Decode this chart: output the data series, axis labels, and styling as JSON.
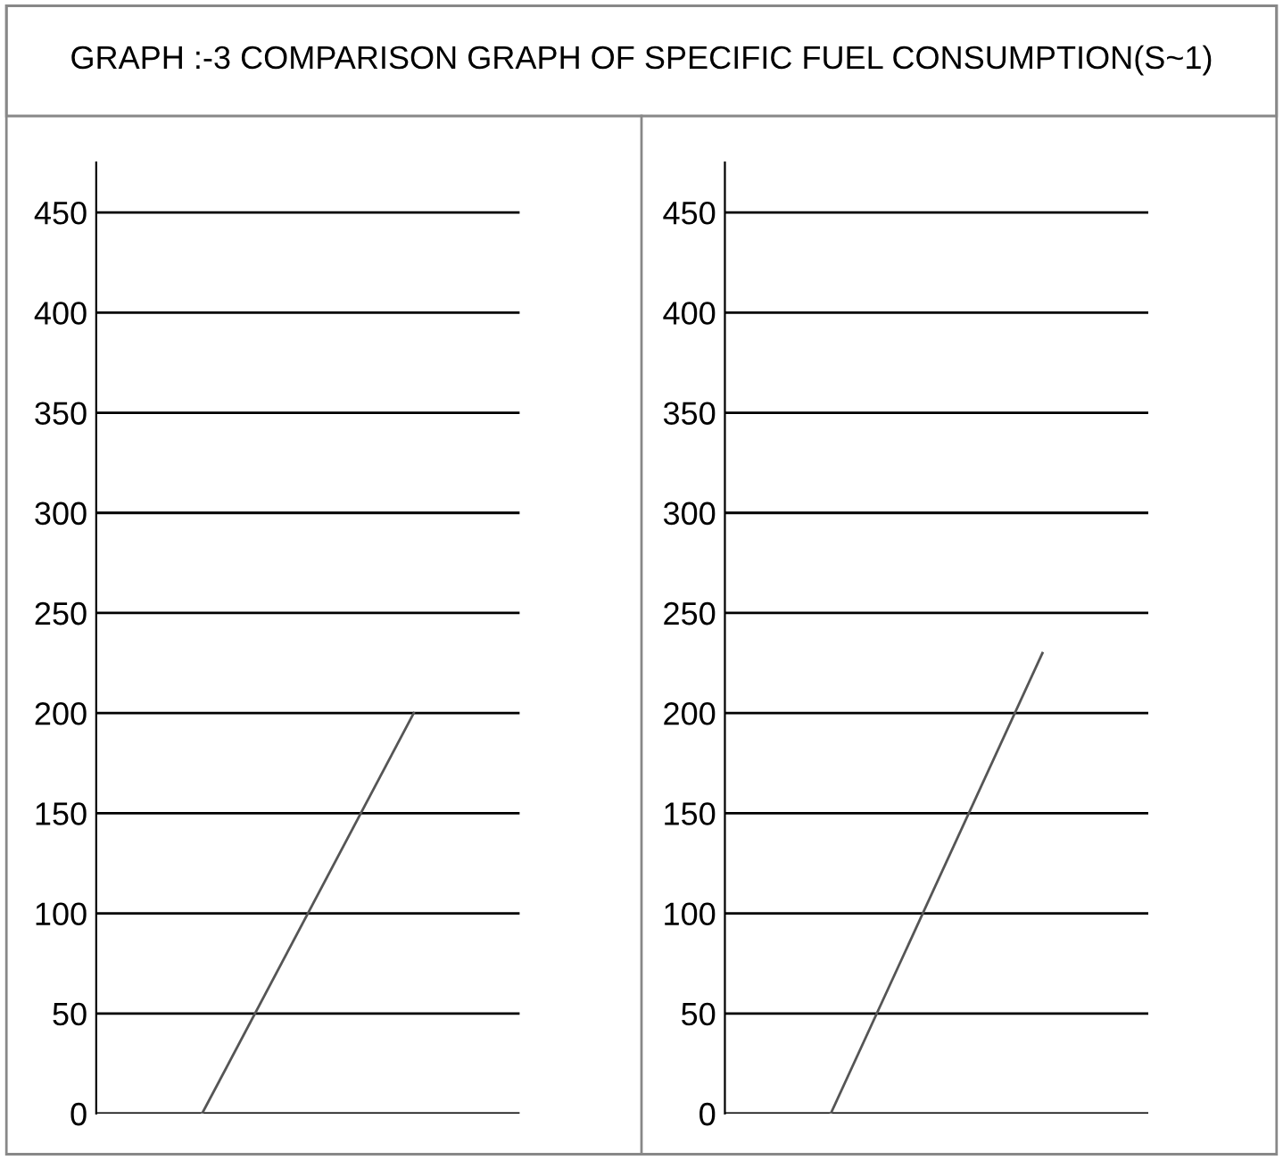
{
  "chart_data": [
    {
      "type": "line",
      "title": "GRAPH :-3 COMPARISON GRAPH OF SPECIFIC FUEL CONSUMPTION(S~1)",
      "categories": [
        null,
        null
      ],
      "series": [
        {
          "color": "#555555",
          "values": [
            0,
            200
          ]
        }
      ],
      "ylim": [
        0,
        475
      ],
      "yticks": [
        0,
        50,
        100,
        150,
        200,
        250,
        300,
        350,
        400,
        450
      ],
      "grid": "y",
      "tick_labels": "y"
    },
    {
      "type": "line",
      "categories": [
        null,
        null
      ],
      "series": [
        {
          "color": "#555555",
          "values": [
            0,
            230
          ]
        }
      ],
      "ylim": [
        0,
        475
      ],
      "yticks": [
        0,
        50,
        100,
        150,
        200,
        250,
        300,
        350,
        400,
        450
      ],
      "grid": "y",
      "tick_labels": "y"
    }
  ]
}
